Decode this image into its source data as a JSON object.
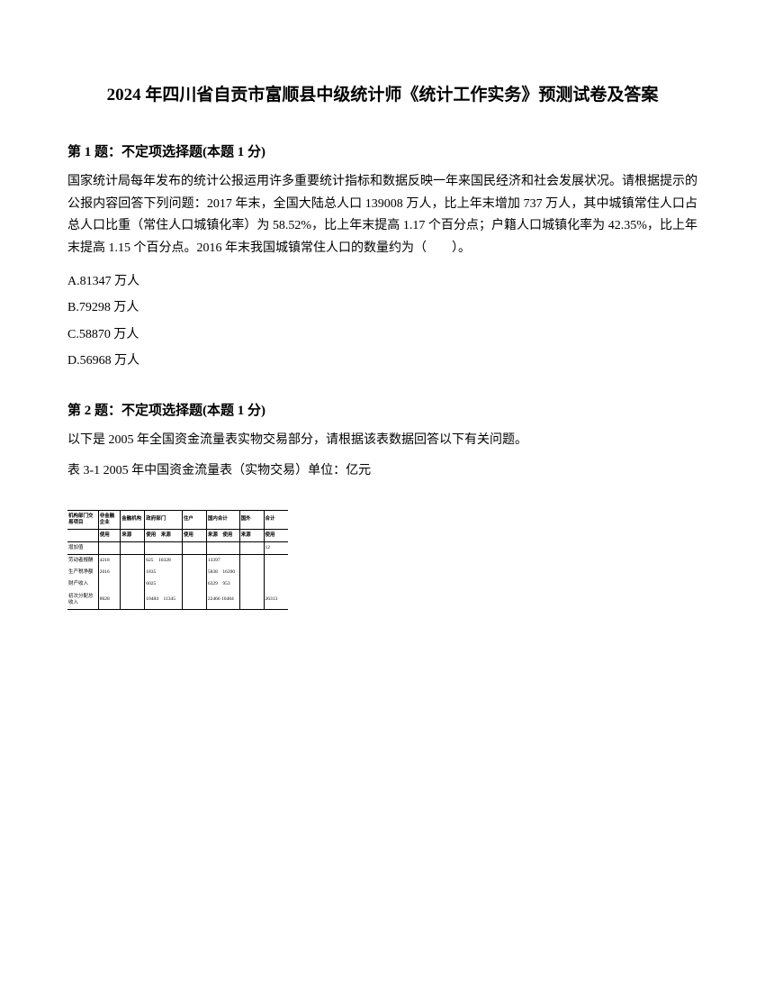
{
  "title": "2024 年四川省自贡市富顺县中级统计师《统计工作实务》预测试卷及答案",
  "q1": {
    "header": "第 1 题：不定项选择题(本题 1 分)",
    "body": "国家统计局每年发布的统计公报运用许多重要统计指标和数据反映一年来国民经济和社会发展状况。请根据提示的公报内容回答下列问题：2017 年末，全国大陆总人口 139008 万人，比上年末增加 737 万人，其中城镇常住人口占总人口比重（常住人口城镇化率）为 58.52%，比上年末提高 1.17 个百分点；户籍人口城镇化率为 42.35%，比上年末提高 1.15 个百分点。2016 年末我国城镇常住人口的数量约为（　　）。",
    "opts": {
      "a": "A.81347 万人",
      "b": "B.79298 万人",
      "c": "C.58870 万人",
      "d": "D.56968 万人"
    }
  },
  "q2": {
    "header": "第 2 题：不定项选择题(本题 1 分)",
    "body": "以下是 2005 年全国资金流量表实物交易部分，请根据该表数据回答以下有关问题。",
    "caption": "表 3-1  2005 年中国资金流量表（实物交易）单位：亿元"
  },
  "table": {
    "header1": {
      "c1": "机构部门交易项目",
      "c2": "非金融企业",
      "c3": "金融机构",
      "c4": "政府部门",
      "c5": "住户",
      "c6": "国内合计",
      "c7": "国外",
      "c8": "合计"
    },
    "header2": {
      "c1": "",
      "c2": "使用",
      "c3": "来源",
      "c4": "使用　来源",
      "c5": "使用",
      "c6": "来源　使用",
      "c7": "来源",
      "c8": "使用"
    },
    "r1": {
      "c1": "增加值",
      "c2": "",
      "c3": "",
      "c4": "",
      "c5": "",
      "c6": "",
      "c7": "",
      "c8": "12"
    },
    "r2": {
      "c1": "劳动者报酬",
      "c2": "4218",
      "c3": "",
      "c4": "625　10328",
      "c5": "",
      "c6": "13397",
      "c7": "",
      "c8": ""
    },
    "r3": {
      "c1": "生产税净额",
      "c2": "2016",
      "c3": "",
      "c4": "1835",
      "c5": "",
      "c6": "5838　16390",
      "c7": "",
      "c8": ""
    },
    "r4": {
      "c1": "财产收入",
      "c2": "",
      "c3": "",
      "c4": "6025",
      "c5": "",
      "c6": "6329　953",
      "c7": "",
      "c8": ""
    },
    "r5": {
      "c1": "初次分配总收入",
      "c2": "8628",
      "c3": "",
      "c4": "10484　11345",
      "c5": "",
      "c6": "22466 10484",
      "c7": "",
      "c8": "26313"
    }
  },
  "styles": {
    "text_color": "#000000",
    "background_color": "#ffffff",
    "title_fontsize": 19,
    "header_fontsize": 15,
    "body_fontsize": 14,
    "table_fontsize": 5.5
  }
}
